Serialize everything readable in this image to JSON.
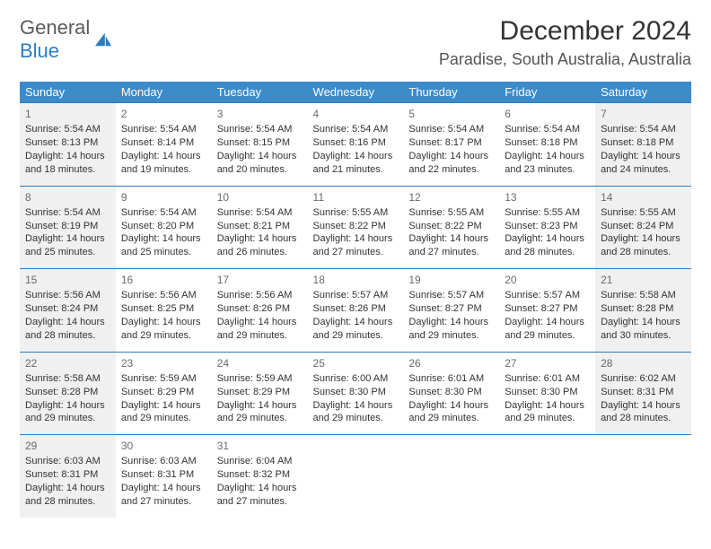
{
  "brand": {
    "part1": "General",
    "part2": "Blue"
  },
  "title": "December 2024",
  "location": "Paradise, South Australia, Australia",
  "colors": {
    "header_bg": "#3b8bc9",
    "header_text": "#ffffff",
    "rule": "#2d7cc0",
    "shade": "#f0f0f0",
    "text": "#333333",
    "daynum": "#6a6a6a",
    "logo_gray": "#5a5a5a",
    "logo_blue": "#2d7cc0",
    "page_bg": "#ffffff"
  },
  "headers": [
    "Sunday",
    "Monday",
    "Tuesday",
    "Wednesday",
    "Thursday",
    "Friday",
    "Saturday"
  ],
  "weeks": [
    [
      {
        "n": "1",
        "sr": "5:54 AM",
        "ss": "8:13 PM",
        "dl": "14 hours and 18 minutes.",
        "shade": true
      },
      {
        "n": "2",
        "sr": "5:54 AM",
        "ss": "8:14 PM",
        "dl": "14 hours and 19 minutes."
      },
      {
        "n": "3",
        "sr": "5:54 AM",
        "ss": "8:15 PM",
        "dl": "14 hours and 20 minutes."
      },
      {
        "n": "4",
        "sr": "5:54 AM",
        "ss": "8:16 PM",
        "dl": "14 hours and 21 minutes."
      },
      {
        "n": "5",
        "sr": "5:54 AM",
        "ss": "8:17 PM",
        "dl": "14 hours and 22 minutes."
      },
      {
        "n": "6",
        "sr": "5:54 AM",
        "ss": "8:18 PM",
        "dl": "14 hours and 23 minutes."
      },
      {
        "n": "7",
        "sr": "5:54 AM",
        "ss": "8:18 PM",
        "dl": "14 hours and 24 minutes.",
        "shade": true
      }
    ],
    [
      {
        "n": "8",
        "sr": "5:54 AM",
        "ss": "8:19 PM",
        "dl": "14 hours and 25 minutes.",
        "shade": true
      },
      {
        "n": "9",
        "sr": "5:54 AM",
        "ss": "8:20 PM",
        "dl": "14 hours and 25 minutes."
      },
      {
        "n": "10",
        "sr": "5:54 AM",
        "ss": "8:21 PM",
        "dl": "14 hours and 26 minutes."
      },
      {
        "n": "11",
        "sr": "5:55 AM",
        "ss": "8:22 PM",
        "dl": "14 hours and 27 minutes."
      },
      {
        "n": "12",
        "sr": "5:55 AM",
        "ss": "8:22 PM",
        "dl": "14 hours and 27 minutes."
      },
      {
        "n": "13",
        "sr": "5:55 AM",
        "ss": "8:23 PM",
        "dl": "14 hours and 28 minutes."
      },
      {
        "n": "14",
        "sr": "5:55 AM",
        "ss": "8:24 PM",
        "dl": "14 hours and 28 minutes.",
        "shade": true
      }
    ],
    [
      {
        "n": "15",
        "sr": "5:56 AM",
        "ss": "8:24 PM",
        "dl": "14 hours and 28 minutes.",
        "shade": true
      },
      {
        "n": "16",
        "sr": "5:56 AM",
        "ss": "8:25 PM",
        "dl": "14 hours and 29 minutes."
      },
      {
        "n": "17",
        "sr": "5:56 AM",
        "ss": "8:26 PM",
        "dl": "14 hours and 29 minutes."
      },
      {
        "n": "18",
        "sr": "5:57 AM",
        "ss": "8:26 PM",
        "dl": "14 hours and 29 minutes."
      },
      {
        "n": "19",
        "sr": "5:57 AM",
        "ss": "8:27 PM",
        "dl": "14 hours and 29 minutes."
      },
      {
        "n": "20",
        "sr": "5:57 AM",
        "ss": "8:27 PM",
        "dl": "14 hours and 29 minutes."
      },
      {
        "n": "21",
        "sr": "5:58 AM",
        "ss": "8:28 PM",
        "dl": "14 hours and 30 minutes.",
        "shade": true
      }
    ],
    [
      {
        "n": "22",
        "sr": "5:58 AM",
        "ss": "8:28 PM",
        "dl": "14 hours and 29 minutes.",
        "shade": true
      },
      {
        "n": "23",
        "sr": "5:59 AM",
        "ss": "8:29 PM",
        "dl": "14 hours and 29 minutes."
      },
      {
        "n": "24",
        "sr": "5:59 AM",
        "ss": "8:29 PM",
        "dl": "14 hours and 29 minutes."
      },
      {
        "n": "25",
        "sr": "6:00 AM",
        "ss": "8:30 PM",
        "dl": "14 hours and 29 minutes."
      },
      {
        "n": "26",
        "sr": "6:01 AM",
        "ss": "8:30 PM",
        "dl": "14 hours and 29 minutes."
      },
      {
        "n": "27",
        "sr": "6:01 AM",
        "ss": "8:30 PM",
        "dl": "14 hours and 29 minutes."
      },
      {
        "n": "28",
        "sr": "6:02 AM",
        "ss": "8:31 PM",
        "dl": "14 hours and 28 minutes.",
        "shade": true
      }
    ],
    [
      {
        "n": "29",
        "sr": "6:03 AM",
        "ss": "8:31 PM",
        "dl": "14 hours and 28 minutes.",
        "shade": true
      },
      {
        "n": "30",
        "sr": "6:03 AM",
        "ss": "8:31 PM",
        "dl": "14 hours and 27 minutes."
      },
      {
        "n": "31",
        "sr": "6:04 AM",
        "ss": "8:32 PM",
        "dl": "14 hours and 27 minutes."
      },
      null,
      null,
      null,
      null
    ]
  ],
  "labels": {
    "sunrise": "Sunrise: ",
    "sunset": "Sunset: ",
    "daylight": "Daylight: "
  }
}
